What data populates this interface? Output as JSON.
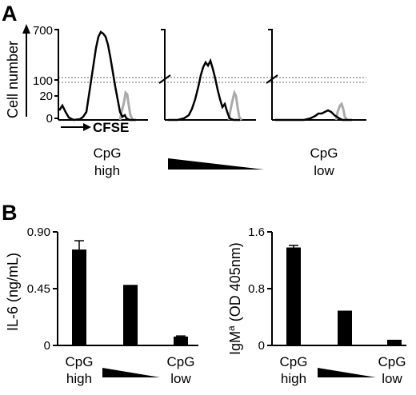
{
  "panels": {
    "a": "A",
    "b": "B"
  },
  "histograms": {
    "ylabel": "Cell number",
    "xlabel": "CFSE",
    "ticks": [
      "700",
      "100",
      "20",
      "0"
    ],
    "label_high": [
      "CpG",
      "high"
    ],
    "label_low": [
      "CpG",
      "low"
    ],
    "colors": {
      "stimulated": "#000000",
      "control": "#aaaaaa"
    }
  },
  "chart_data": [
    {
      "type": "bar",
      "categories": [
        "CpG high",
        "",
        "CpG low"
      ],
      "values": [
        0.76,
        0.48,
        0.07
      ],
      "errors": [
        0.07,
        0.0,
        0.005
      ],
      "ylabel": "IL-6 (ng/mL)",
      "ylim": [
        0,
        0.9
      ],
      "yticks": [
        "0.90",
        "0.45",
        "0"
      ],
      "ytick_values": [
        0.9,
        0.45,
        0
      ]
    },
    {
      "type": "bar",
      "categories": [
        "CpG high",
        "",
        "CpG low"
      ],
      "values": [
        1.38,
        0.49,
        0.08
      ],
      "errors": [
        0.03,
        0.0,
        0.0
      ],
      "ylabel_main": "IgM",
      "ylabel_sup": "a",
      "ylabel_rest": " (OD 405nm)",
      "ylim": [
        0,
        1.6
      ],
      "yticks": [
        "1.6",
        "0.8",
        "0"
      ],
      "ytick_values": [
        1.6,
        0.8,
        0
      ]
    }
  ]
}
